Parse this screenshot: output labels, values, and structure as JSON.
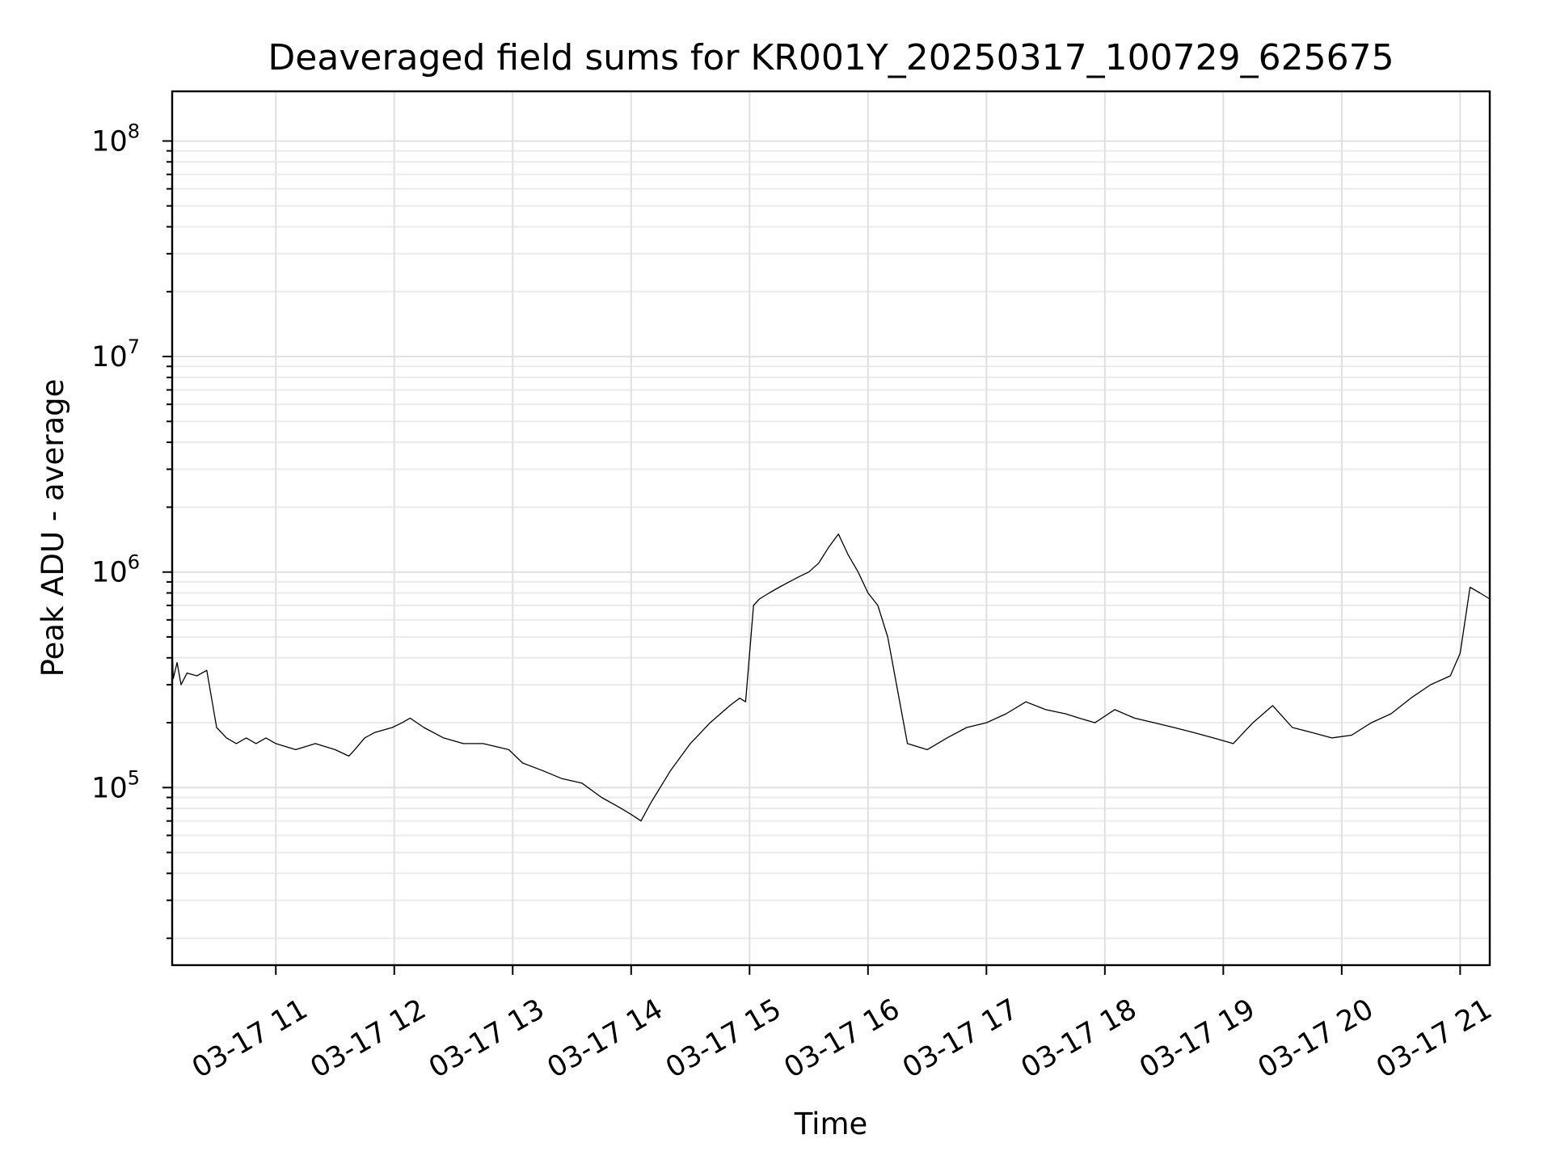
{
  "chart_data": {
    "type": "line",
    "title": "Deaveraged field sums for KR001Y_20250317_100729_625675",
    "xlabel": "Time",
    "ylabel": "Peak ADU - average",
    "yscale": "log",
    "x_is_datetime": true,
    "xlim": [
      "2025-03-17T10:07:29",
      "2025-03-17T21:15:00"
    ],
    "ylim": [
      15000,
      170000000
    ],
    "x_ticks": [
      {
        "value": "2025-03-17T11:00:00",
        "label": "03-17 11"
      },
      {
        "value": "2025-03-17T12:00:00",
        "label": "03-17 12"
      },
      {
        "value": "2025-03-17T13:00:00",
        "label": "03-17 13"
      },
      {
        "value": "2025-03-17T14:00:00",
        "label": "03-17 14"
      },
      {
        "value": "2025-03-17T15:00:00",
        "label": "03-17 15"
      },
      {
        "value": "2025-03-17T16:00:00",
        "label": "03-17 16"
      },
      {
        "value": "2025-03-17T17:00:00",
        "label": "03-17 17"
      },
      {
        "value": "2025-03-17T18:00:00",
        "label": "03-17 18"
      },
      {
        "value": "2025-03-17T19:00:00",
        "label": "03-17 19"
      },
      {
        "value": "2025-03-17T20:00:00",
        "label": "03-17 20"
      },
      {
        "value": "2025-03-17T21:00:00",
        "label": "03-17 21"
      }
    ],
    "y_ticks": [
      {
        "value": 100000,
        "base": "10",
        "exp": "5"
      },
      {
        "value": 1000000,
        "base": "10",
        "exp": "6"
      },
      {
        "value": 10000000,
        "base": "10",
        "exp": "7"
      },
      {
        "value": 100000000,
        "base": "10",
        "exp": "8"
      }
    ],
    "grid": true,
    "grid_minor": true,
    "line_color": "#000000",
    "series": [
      {
        "x": [
          "2025-03-17T10:07:29",
          "2025-03-17T10:08:00",
          "2025-03-17T10:10:00",
          "2025-03-17T10:12:00",
          "2025-03-17T10:15:00",
          "2025-03-17T10:20:00",
          "2025-03-17T10:25:00",
          "2025-03-17T10:30:00",
          "2025-03-17T10:35:00",
          "2025-03-17T10:40:00",
          "2025-03-17T10:45:00",
          "2025-03-17T10:50:00",
          "2025-03-17T10:55:00",
          "2025-03-17T11:00:00",
          "2025-03-17T11:10:00",
          "2025-03-17T11:20:00",
          "2025-03-17T11:30:00",
          "2025-03-17T11:37:00",
          "2025-03-17T11:40:00",
          "2025-03-17T11:45:00",
          "2025-03-17T11:50:00",
          "2025-03-17T11:59:00",
          "2025-03-17T12:04:00",
          "2025-03-17T12:08:00",
          "2025-03-17T12:15:00",
          "2025-03-17T12:25:00",
          "2025-03-17T12:35:00",
          "2025-03-17T12:45:00",
          "2025-03-17T12:58:00",
          "2025-03-17T13:05:00",
          "2025-03-17T13:15:00",
          "2025-03-17T13:25:00",
          "2025-03-17T13:35:00",
          "2025-03-17T13:45:00",
          "2025-03-17T13:55:00",
          "2025-03-17T14:00:00",
          "2025-03-17T14:05:00",
          "2025-03-17T14:10:00",
          "2025-03-17T14:20:00",
          "2025-03-17T14:30:00",
          "2025-03-17T14:40:00",
          "2025-03-17T14:50:00",
          "2025-03-17T14:55:00",
          "2025-03-17T14:58:00",
          "2025-03-17T15:02:00",
          "2025-03-17T15:05:00",
          "2025-03-17T15:10:00",
          "2025-03-17T15:15:00",
          "2025-03-17T15:20:00",
          "2025-03-17T15:25:00",
          "2025-03-17T15:30:00",
          "2025-03-17T15:35:00",
          "2025-03-17T15:40:00",
          "2025-03-17T15:45:00",
          "2025-03-17T15:50:00",
          "2025-03-17T15:55:00",
          "2025-03-17T16:00:00",
          "2025-03-17T16:05:00",
          "2025-03-17T16:10:00",
          "2025-03-17T16:20:00",
          "2025-03-17T16:30:00",
          "2025-03-17T16:40:00",
          "2025-03-17T16:50:00",
          "2025-03-17T17:00:00",
          "2025-03-17T17:10:00",
          "2025-03-17T17:20:00",
          "2025-03-17T17:30:00",
          "2025-03-17T17:40:00",
          "2025-03-17T17:47:00",
          "2025-03-17T17:55:00",
          "2025-03-17T18:05:00",
          "2025-03-17T18:15:00",
          "2025-03-17T18:25:00",
          "2025-03-17T18:35:00",
          "2025-03-17T18:45:00",
          "2025-03-17T18:55:00",
          "2025-03-17T19:05:00",
          "2025-03-17T19:15:00",
          "2025-03-17T19:25:00",
          "2025-03-17T19:35:00",
          "2025-03-17T19:45:00",
          "2025-03-17T19:55:00",
          "2025-03-17T20:05:00",
          "2025-03-17T20:15:00",
          "2025-03-17T20:25:00",
          "2025-03-17T20:35:00",
          "2025-03-17T20:45:00",
          "2025-03-17T20:55:00",
          "2025-03-17T21:00:00",
          "2025-03-17T21:05:00",
          "2025-03-17T21:10:00",
          "2025-03-17T21:15:00"
        ],
        "y": [
          450000,
          320000,
          380000,
          300000,
          340000,
          330000,
          350000,
          190000,
          170000,
          160000,
          170000,
          160000,
          170000,
          160000,
          150000,
          160000,
          150000,
          140000,
          150000,
          170000,
          180000,
          190000,
          200000,
          210000,
          190000,
          170000,
          160000,
          160000,
          150000,
          130000,
          120000,
          110000,
          105000,
          90000,
          80000,
          75000,
          70000,
          85000,
          120000,
          160000,
          200000,
          240000,
          260000,
          250000,
          700000,
          750000,
          800000,
          850000,
          900000,
          950000,
          1000000,
          1100000,
          1300000,
          1500000,
          1200000,
          1000000,
          800000,
          700000,
          500000,
          160000,
          150000,
          170000,
          190000,
          200000,
          220000,
          250000,
          230000,
          220000,
          210000,
          200000,
          230000,
          210000,
          200000,
          190000,
          180000,
          170000,
          160000,
          200000,
          240000,
          190000,
          180000,
          170000,
          175000,
          200000,
          220000,
          260000,
          300000,
          330000,
          420000,
          850000,
          800000,
          750000
        ]
      }
    ]
  }
}
